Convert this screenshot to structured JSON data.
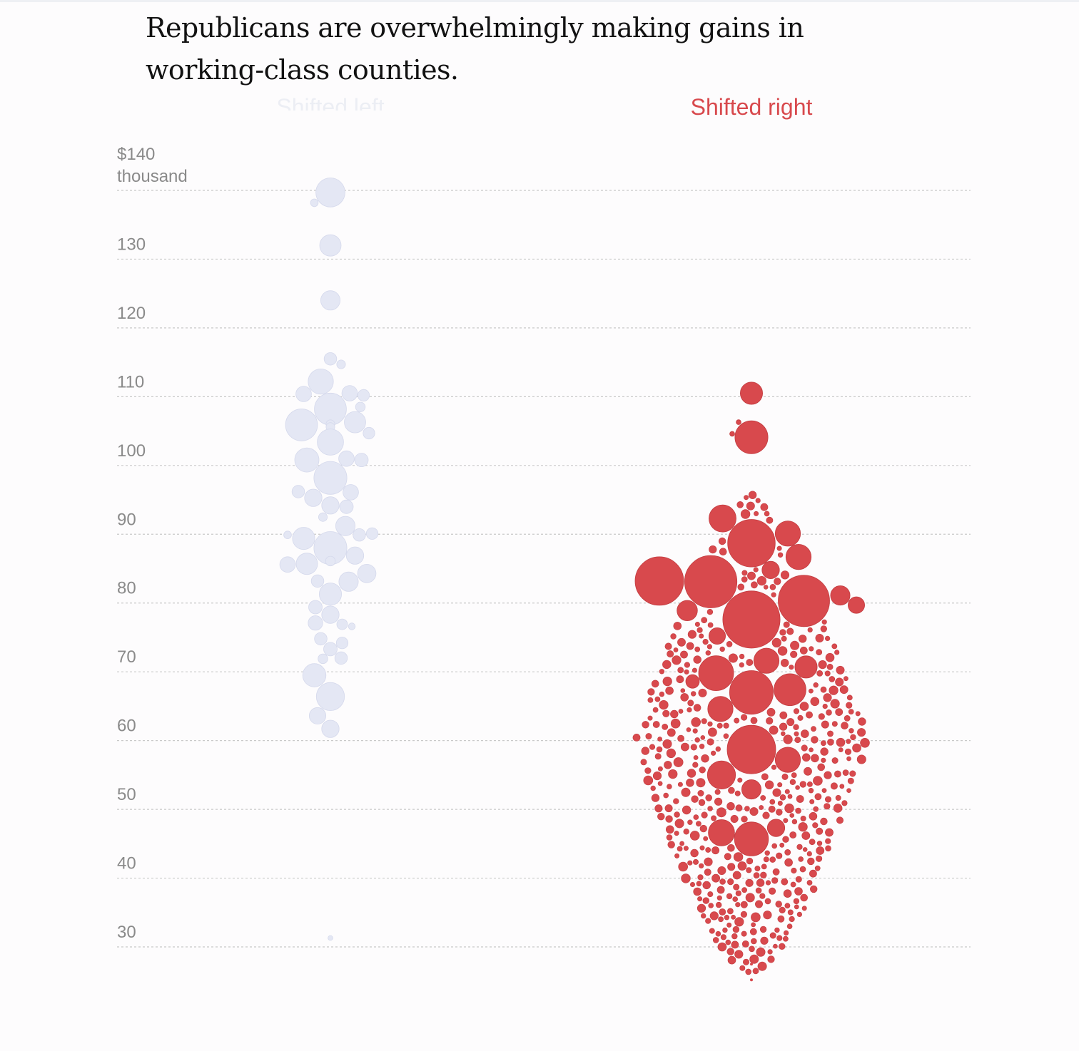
{
  "headline": "Republicans are overwhelmingly making gains in working-class counties.",
  "colors": {
    "shifted_left": "#e4e7f4",
    "shifted_left_stroke": "#d5d9ec",
    "shifted_right": "#d8494d",
    "shifted_right_stroke": "#c23c40",
    "gridline": "#c9c9c9",
    "tick_text": "#8a8a8a"
  },
  "chart_data": {
    "type": "scatter",
    "subtype": "beeswarm",
    "title": "",
    "xlabel": "",
    "ylabel": "",
    "y_unit_label": "thousand",
    "y_tick_labels": [
      "$140",
      "130",
      "120",
      "110",
      "100",
      "90",
      "80",
      "70",
      "60",
      "50",
      "40",
      "30"
    ],
    "y_ticks": [
      140,
      130,
      120,
      110,
      100,
      90,
      80,
      70,
      60,
      50,
      40,
      30
    ],
    "ylim": [
      30,
      140
    ],
    "grid": true,
    "categories": [
      "Shifted left",
      "Shifted right"
    ],
    "series": [
      {
        "name": "Shifted left",
        "points": [
          {
            "y": 139.7,
            "size": 3.0
          },
          {
            "y": 138.2,
            "size": 0.8
          },
          {
            "y": 132.0,
            "size": 2.2
          },
          {
            "y": 124.0,
            "size": 2.0
          },
          {
            "y": 115.5,
            "size": 1.3
          },
          {
            "y": 114.7,
            "size": 0.9
          },
          {
            "y": 112.2,
            "size": 2.6
          },
          {
            "y": 110.5,
            "size": 1.6
          },
          {
            "y": 110.2,
            "size": 1.2
          },
          {
            "y": 110.4,
            "size": 1.6
          },
          {
            "y": 108.2,
            "size": 3.3
          },
          {
            "y": 108.5,
            "size": 1.0
          },
          {
            "y": 106.3,
            "size": 2.2
          },
          {
            "y": 105.9,
            "size": 3.3
          },
          {
            "y": 106.0,
            "size": 0.9
          },
          {
            "y": 105.6,
            "size": 0.9
          },
          {
            "y": 104.7,
            "size": 1.2
          },
          {
            "y": 103.4,
            "size": 2.7
          },
          {
            "y": 101.0,
            "size": 1.6
          },
          {
            "y": 100.8,
            "size": 1.4
          },
          {
            "y": 100.8,
            "size": 2.5
          },
          {
            "y": 98.2,
            "size": 3.4
          },
          {
            "y": 96.1,
            "size": 1.6
          },
          {
            "y": 96.2,
            "size": 1.3
          },
          {
            "y": 95.3,
            "size": 1.8
          },
          {
            "y": 94.0,
            "size": 1.4
          },
          {
            "y": 94.2,
            "size": 1.8
          },
          {
            "y": 92.5,
            "size": 0.9
          },
          {
            "y": 91.2,
            "size": 2.0
          },
          {
            "y": 90.1,
            "size": 1.2
          },
          {
            "y": 89.9,
            "size": 1.3
          },
          {
            "y": 89.4,
            "size": 2.3
          },
          {
            "y": 89.9,
            "size": 0.8
          },
          {
            "y": 88.0,
            "size": 3.4
          },
          {
            "y": 86.9,
            "size": 1.8
          },
          {
            "y": 85.7,
            "size": 2.2
          },
          {
            "y": 85.6,
            "size": 1.6
          },
          {
            "y": 86.1,
            "size": 1.0
          },
          {
            "y": 84.3,
            "size": 1.9
          },
          {
            "y": 83.1,
            "size": 2.0
          },
          {
            "y": 83.2,
            "size": 1.3
          },
          {
            "y": 81.3,
            "size": 2.3
          },
          {
            "y": 79.4,
            "size": 1.4
          },
          {
            "y": 78.3,
            "size": 1.8
          },
          {
            "y": 77.1,
            "size": 1.5
          },
          {
            "y": 76.9,
            "size": 1.1
          },
          {
            "y": 76.6,
            "size": 0.7
          },
          {
            "y": 74.8,
            "size": 1.3
          },
          {
            "y": 74.2,
            "size": 1.2
          },
          {
            "y": 73.3,
            "size": 1.4
          },
          {
            "y": 72.0,
            "size": 1.3
          },
          {
            "y": 71.9,
            "size": 1.0
          },
          {
            "y": 69.5,
            "size": 2.4
          },
          {
            "y": 66.4,
            "size": 2.9
          },
          {
            "y": 63.6,
            "size": 1.7
          },
          {
            "y": 61.7,
            "size": 1.8
          },
          {
            "y": 31.3,
            "size": 0.5
          }
        ]
      },
      {
        "name": "Shifted right",
        "points": [
          {
            "y": 110.5,
            "size": 2.3
          },
          {
            "y": 104.1,
            "size": 3.4
          },
          {
            "y": 88.7,
            "size": 4.9
          },
          {
            "y": 90.1,
            "size": 2.6
          },
          {
            "y": 92.3,
            "size": 2.8
          },
          {
            "y": 86.7,
            "size": 2.6
          },
          {
            "y": 83.2,
            "size": 5.0
          },
          {
            "y": 83.1,
            "size": 5.4
          },
          {
            "y": 80.3,
            "size": 5.3
          },
          {
            "y": 77.6,
            "size": 5.9
          },
          {
            "y": 67.0,
            "size": 4.5
          },
          {
            "y": 69.8,
            "size": 3.6
          },
          {
            "y": 67.4,
            "size": 3.3
          },
          {
            "y": 64.6,
            "size": 2.6
          },
          {
            "y": 58.7,
            "size": 5.0
          },
          {
            "y": 55.0,
            "size": 2.9
          },
          {
            "y": 57.2,
            "size": 2.6
          },
          {
            "y": 71.6,
            "size": 2.6
          },
          {
            "y": 45.7,
            "size": 3.5
          },
          {
            "y": 46.6,
            "size": 2.7
          },
          {
            "y": 78.9,
            "size": 2.1
          },
          {
            "y": 75.2,
            "size": 1.7
          },
          {
            "y": 68.6,
            "size": 1.4
          },
          {
            "y": 70.7,
            "size": 2.3
          },
          {
            "y": 52.9,
            "size": 2.0
          },
          {
            "y": 47.3,
            "size": 1.8
          },
          {
            "y": 104.6,
            "size": 0.5
          },
          {
            "y": 106.3,
            "size": 0.5
          },
          {
            "y": 84.8,
            "size": 1.8
          },
          {
            "y": 79.7,
            "size": 1.7
          },
          {
            "y": 81.1,
            "size": 2.0
          }
        ]
      }
    ]
  },
  "swarm_shape": {
    "description": "Dense swarm of small red circles for shifted-right counties",
    "y_range": [
      26,
      96
    ],
    "peak_y": 60.5,
    "count": 1300
  }
}
